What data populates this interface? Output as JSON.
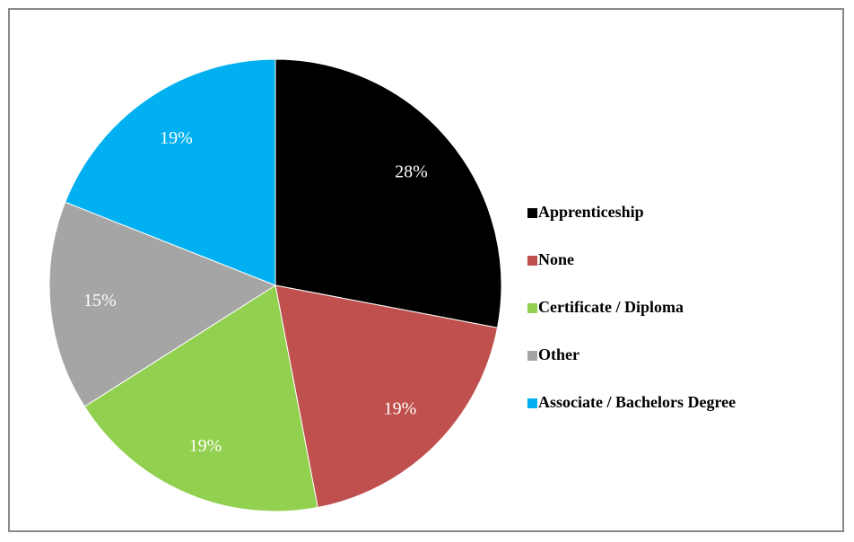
{
  "chart_data": {
    "type": "pie",
    "categories": [
      "Apprenticeship",
      "None",
      "Certificate / Diploma",
      "Other",
      "Associate / Bachelors Degree"
    ],
    "values": [
      28,
      19,
      19,
      15,
      19
    ],
    "value_labels": [
      "28%",
      "19%",
      "19%",
      "15%",
      "19%"
    ],
    "colors": [
      "#000000",
      "#c0504d",
      "#92d050",
      "#a5a5a5",
      "#00b0f0"
    ]
  }
}
